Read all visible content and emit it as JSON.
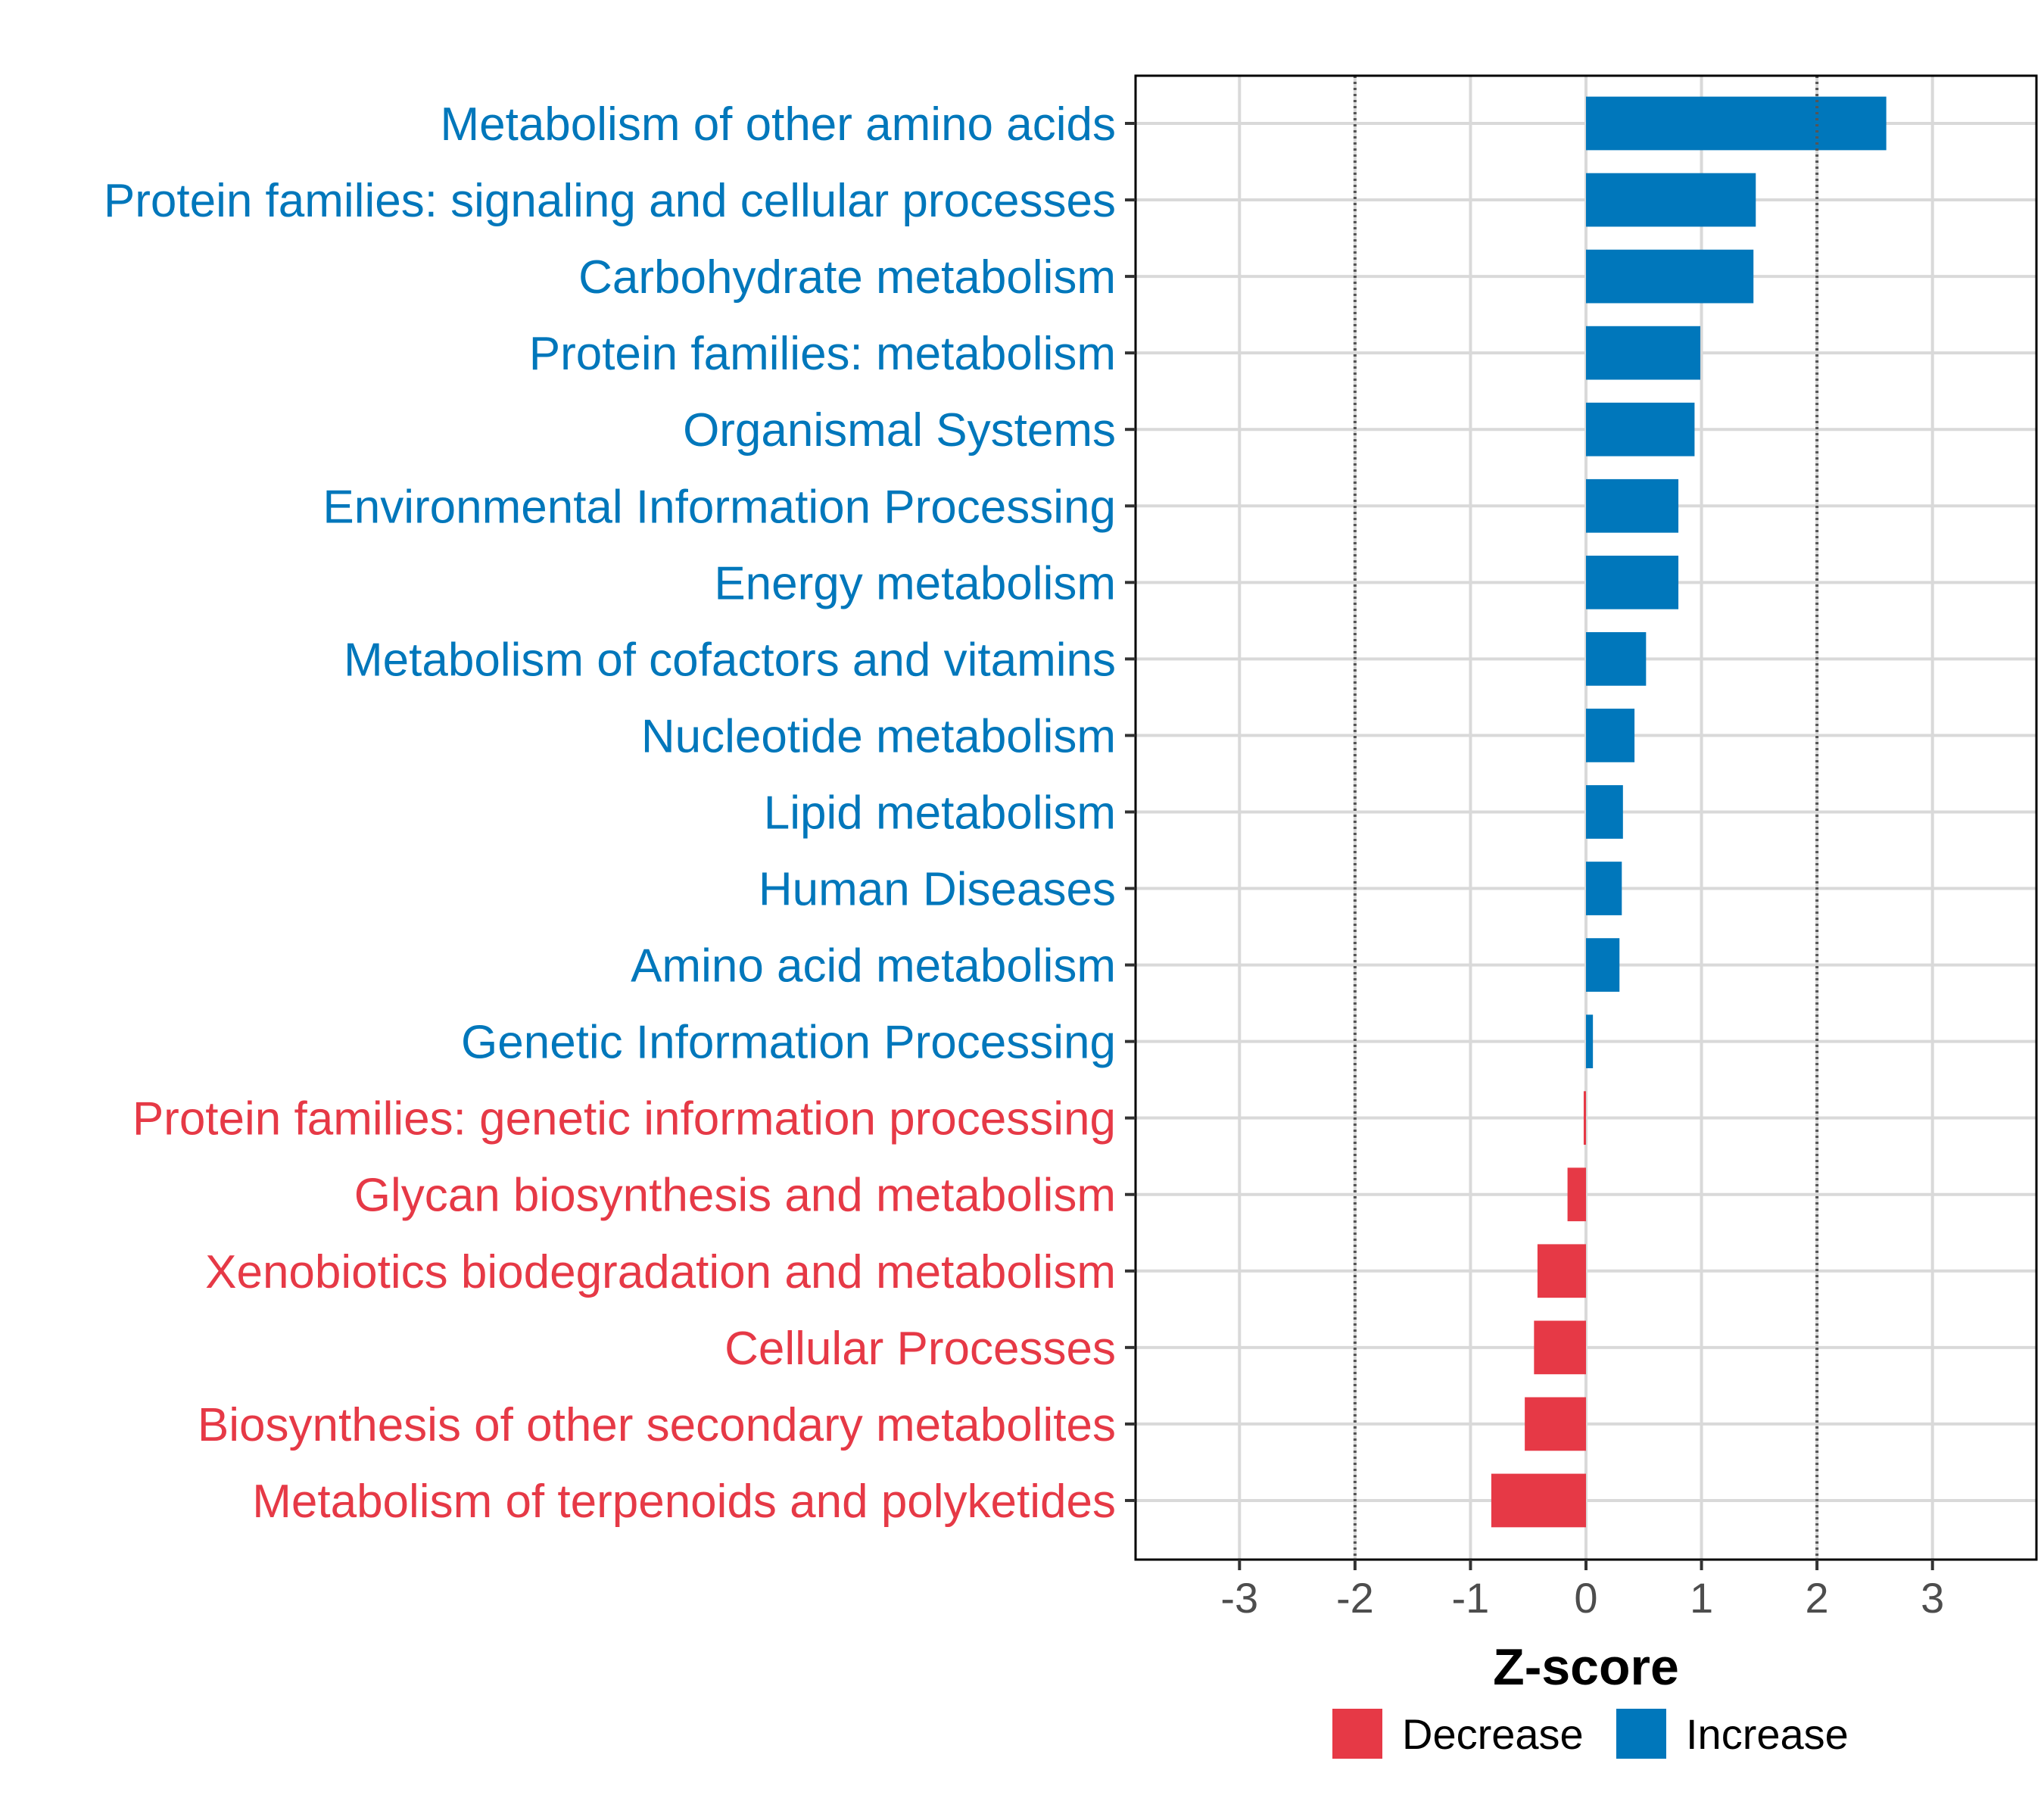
{
  "chart_data": {
    "type": "bar",
    "orientation": "horizontal",
    "title": "",
    "xlabel": "Z-score",
    "ylabel": "",
    "xlim": [
      -3.9,
      3.9
    ],
    "x_ticks": [
      -3,
      -2,
      -1,
      0,
      1,
      2,
      3
    ],
    "x_tick_labels": [
      "-3",
      "-2",
      "-1",
      "0",
      "1",
      "2",
      "3"
    ],
    "reference_lines": [
      -2,
      2
    ],
    "grid": true,
    "categories": [
      "Metabolism of other amino acids",
      "Protein families: signaling and cellular processes",
      "Carbohydrate metabolism",
      "Protein families: metabolism",
      "Organismal Systems",
      "Environmental Information Processing",
      "Energy metabolism",
      "Metabolism of cofactors and vitamins",
      "Nucleotide metabolism",
      "Lipid metabolism",
      "Human Diseases",
      "Amino acid metabolism",
      "Genetic Information Processing",
      "Protein families: genetic information processing",
      "Glycan biosynthesis and metabolism",
      "Xenobiotics biodegradation and metabolism",
      "Cellular Processes",
      "Biosynthesis of other secondary metabolites",
      "Metabolism of terpenoids and polyketides"
    ],
    "values": [
      2.6,
      1.47,
      1.45,
      0.99,
      0.94,
      0.8,
      0.8,
      0.52,
      0.42,
      0.32,
      0.31,
      0.29,
      0.06,
      -0.02,
      -0.16,
      -0.42,
      -0.45,
      -0.53,
      -0.82
    ],
    "groups": [
      "Increase",
      "Increase",
      "Increase",
      "Increase",
      "Increase",
      "Increase",
      "Increase",
      "Increase",
      "Increase",
      "Increase",
      "Increase",
      "Increase",
      "Increase",
      "Decrease",
      "Decrease",
      "Decrease",
      "Decrease",
      "Decrease",
      "Decrease"
    ],
    "legend": {
      "position": "bottom",
      "entries": [
        {
          "label": "Decrease",
          "color": "#e63946"
        },
        {
          "label": "Increase",
          "color": "#0077bb"
        }
      ]
    },
    "colors": {
      "Decrease": "#e63946",
      "Increase": "#0077bb"
    }
  }
}
